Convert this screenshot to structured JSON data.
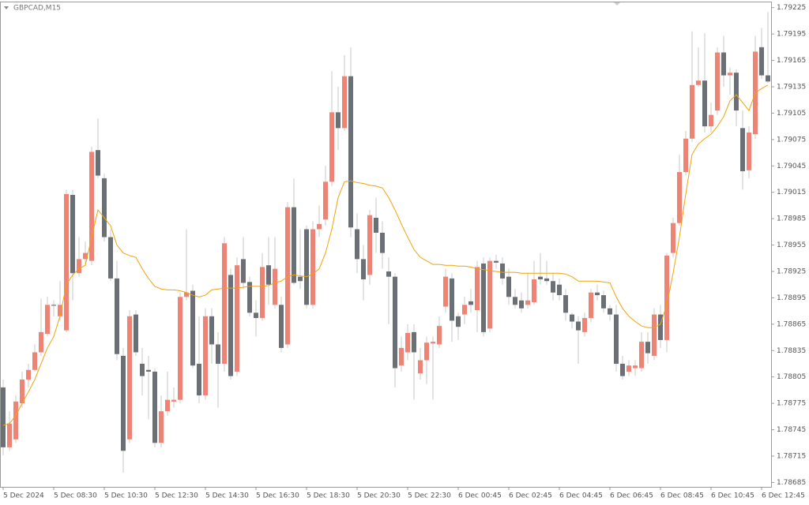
{
  "chart_data": {
    "type": "candlestick",
    "title": "GBPCAD,M15",
    "categories": [
      "5 Dec 2024",
      null,
      null,
      null,
      null,
      null,
      null,
      null,
      "5 Dec 08:30",
      null,
      null,
      null,
      null,
      null,
      null,
      null,
      "5 Dec 10:30",
      null,
      null,
      null,
      null,
      null,
      null,
      null,
      "5 Dec 12:30",
      null,
      null,
      null,
      null,
      null,
      null,
      null,
      "5 Dec 14:30",
      null,
      null,
      null,
      null,
      null,
      null,
      null,
      "5 Dec 16:30",
      null,
      null,
      null,
      null,
      null,
      null,
      null,
      "5 Dec 18:30",
      null,
      null,
      null,
      null,
      null,
      null,
      null,
      "5 Dec 20:30",
      null,
      null,
      null,
      null,
      null,
      null,
      null,
      "5 Dec 22:30",
      null,
      null,
      null,
      null,
      null,
      null,
      null,
      "6 Dec 00:45",
      null,
      null,
      null,
      null,
      null,
      null,
      null,
      "6 Dec 02:45",
      null,
      null,
      null,
      null,
      null,
      null,
      null,
      "6 Dec 04:45",
      null,
      null,
      null,
      null,
      null,
      null,
      null,
      "6 Dec 06:45",
      null,
      null,
      null,
      null,
      null,
      null,
      null,
      "6 Dec 08:45",
      null,
      null,
      null,
      null,
      null,
      null,
      null,
      "6 Dec 10:45",
      null,
      null,
      null,
      null,
      null,
      null,
      null,
      "6 Dec 12:45",
      null
    ],
    "open": [
      1.78793,
      1.78725,
      1.78734,
      1.78775,
      1.78802,
      1.78813,
      1.78833,
      1.78854,
      1.78887,
      1.78874,
      1.78858,
      1.79012,
      1.78923,
      1.78939,
      1.78937,
      1.79063,
      1.79031,
      1.78964,
      1.78917,
      1.78829,
      1.78734,
      1.78876,
      1.7882,
      1.78813,
      1.78811,
      1.7873,
      1.78766,
      1.78777,
      1.78779,
      1.78896,
      1.78903,
      1.7882,
      1.78784,
      1.78874,
      1.78842,
      1.7882,
      1.78921,
      1.78811,
      1.78939,
      1.78913,
      1.78878,
      1.78872,
      1.78932,
      1.78887,
      1.78887,
      1.78842,
      1.78998,
      1.78919,
      1.78973,
      1.78887,
      1.78973,
      1.78984,
      1.79027,
      1.79106,
      1.79088,
      1.79147,
      1.78973,
      1.78939,
      1.78921,
      1.78986,
      1.78969,
      1.78925,
      1.78919,
      1.78818,
      1.78833,
      1.78856,
      1.78809,
      1.78824,
      1.78843,
      1.78842,
      1.78885,
      1.78917,
      1.78874,
      1.78876,
      1.78891,
      1.78881,
      1.78934,
      1.7886,
      1.78937,
      1.78934,
      1.78919,
      1.78896,
      1.78892,
      1.78887,
      1.7889,
      1.78919,
      1.78917,
      1.78914,
      1.7891,
      1.78898,
      1.78876,
      1.78868,
      1.78856,
      1.78872,
      1.78901,
      1.78898,
      1.78883,
      1.78876,
      1.7882,
      1.78811,
      1.78815,
      1.78815,
      1.78845,
      1.78829,
      1.78876,
      1.78847,
      1.78946,
      1.7898,
      1.79038,
      1.79076,
      1.79137,
      1.79142,
      1.7909,
      1.79108,
      1.79174,
      1.79148,
      1.79151,
      1.79088,
      1.7904,
      1.79081,
      1.7918,
      1.79148
    ],
    "high": [
      1.78802,
      1.78766,
      1.78784,
      1.78811,
      1.7882,
      1.78842,
      1.78894,
      1.78896,
      1.78892,
      1.78914,
      1.79018,
      1.79018,
      1.78964,
      1.78959,
      1.79067,
      1.79099,
      1.79036,
      1.78973,
      1.78937,
      1.78838,
      1.78881,
      1.78881,
      1.78838,
      1.78829,
      1.78815,
      1.78784,
      1.78811,
      1.78793,
      1.78901,
      1.78973,
      1.7891,
      1.78874,
      1.78883,
      1.78883,
      1.78856,
      1.78964,
      1.78928,
      1.78941,
      1.78964,
      1.78919,
      1.78892,
      1.78946,
      1.78964,
      1.78964,
      1.78896,
      1.79004,
      1.79031,
      1.78973,
      1.78977,
      1.78982,
      1.79,
      1.79045,
      1.79153,
      1.79135,
      1.79171,
      1.7918,
      1.78991,
      1.78955,
      1.78995,
      1.79009,
      1.78982,
      1.78941,
      1.78923,
      1.78851,
      1.78865,
      1.78865,
      1.78838,
      1.78851,
      1.78851,
      1.78874,
      1.78928,
      1.78923,
      1.78878,
      1.78896,
      1.78905,
      1.78937,
      1.78941,
      1.78941,
      1.78944,
      1.78941,
      1.78928,
      1.78905,
      1.78901,
      1.78923,
      1.78937,
      1.78946,
      1.78937,
      1.78923,
      1.78917,
      1.78905,
      1.78878,
      1.78874,
      1.78878,
      1.78905,
      1.7891,
      1.78903,
      1.78887,
      1.78887,
      1.78829,
      1.78824,
      1.78824,
      1.78856,
      1.78856,
      1.78883,
      1.78887,
      1.78946,
      1.78986,
      1.79058,
      1.79085,
      1.79198,
      1.7918,
      1.79196,
      1.79117,
      1.7918,
      1.79193,
      1.79157,
      1.79155,
      1.79108,
      1.7909,
      1.79193,
      1.79202,
      1.7922
    ],
    "low": [
      1.78716,
      1.78721,
      1.7873,
      1.7877,
      1.78793,
      1.78811,
      1.78829,
      1.78851,
      1.78874,
      1.78869,
      1.78856,
      1.78892,
      1.78919,
      1.78932,
      1.78932,
      1.79031,
      1.78959,
      1.78914,
      1.78824,
      1.78696,
      1.7873,
      1.78829,
      1.78784,
      1.78757,
      1.78725,
      1.78725,
      1.78761,
      1.7877,
      1.78775,
      1.78892,
      1.78815,
      1.78775,
      1.78779,
      1.7882,
      1.7877,
      1.78811,
      1.78802,
      1.78806,
      1.78905,
      1.78874,
      1.78851,
      1.78869,
      1.78887,
      1.78883,
      1.78833,
      1.78838,
      1.7891,
      1.78905,
      1.78883,
      1.78883,
      1.78964,
      1.78977,
      1.79022,
      1.79063,
      1.79085,
      1.78964,
      1.78923,
      1.78892,
      1.7891,
      1.78946,
      1.78928,
      1.78865,
      1.78793,
      1.78811,
      1.78824,
      1.78779,
      1.78802,
      1.78797,
      1.78779,
      1.78838,
      1.78878,
      1.78845,
      1.78847,
      1.78865,
      1.78878,
      1.78856,
      1.78851,
      1.78856,
      1.78928,
      1.7891,
      1.78887,
      1.78883,
      1.78878,
      1.78883,
      1.78887,
      1.7891,
      1.7891,
      1.78892,
      1.78892,
      1.78869,
      1.7886,
      1.7882,
      1.78851,
      1.78867,
      1.78892,
      1.78878,
      1.78869,
      1.78811,
      1.78802,
      1.78806,
      1.78806,
      1.78811,
      1.7882,
      1.78824,
      1.78838,
      1.78833,
      1.78941,
      1.78977,
      1.79034,
      1.79072,
      1.79135,
      1.79083,
      1.79083,
      1.79103,
      1.79135,
      1.79126,
      1.7909,
      1.79018,
      1.79031,
      1.79076,
      1.79144,
      1.79139
    ],
    "close": [
      1.78725,
      1.78752,
      1.78777,
      1.78802,
      1.78813,
      1.78833,
      1.78856,
      1.78887,
      1.78886,
      1.78887,
      1.79013,
      1.78923,
      1.78939,
      1.78946,
      1.79061,
      1.79034,
      1.78964,
      1.78917,
      1.78831,
      1.78721,
      1.78874,
      1.78833,
      1.78806,
      1.78811,
      1.7873,
      1.78766,
      1.78779,
      1.78779,
      1.78896,
      1.78901,
      1.78818,
      1.78784,
      1.78874,
      1.78842,
      1.7882,
      1.78957,
      1.78806,
      1.78932,
      1.78912,
      1.78878,
      1.78872,
      1.7893,
      1.7891,
      1.78928,
      1.78838,
      1.78998,
      1.78912,
      1.78914,
      1.78887,
      1.78973,
      1.78979,
      1.79027,
      1.79106,
      1.79088,
      1.79147,
      1.78975,
      1.78939,
      1.78916,
      1.78989,
      1.78969,
      1.78946,
      1.78919,
      1.78815,
      1.78838,
      1.78855,
      1.78833,
      1.78824,
      1.78844,
      1.78845,
      1.78863,
      1.78919,
      1.78869,
      1.78862,
      1.78887,
      1.78887,
      1.7893,
      1.78856,
      1.78937,
      1.78935,
      1.78917,
      1.78896,
      1.78887,
      1.78883,
      1.78892,
      1.78916,
      1.78916,
      1.78914,
      1.78901,
      1.78898,
      1.78878,
      1.78868,
      1.78858,
      1.78872,
      1.78901,
      1.78898,
      1.78883,
      1.78876,
      1.7882,
      1.78806,
      1.78818,
      1.78818,
      1.78845,
      1.78832,
      1.78876,
      1.78847,
      1.78943,
      1.7898,
      1.79038,
      1.79076,
      1.79137,
      1.79142,
      1.7909,
      1.79103,
      1.79174,
      1.79148,
      1.79151,
      1.79108,
      1.79039,
      1.79083,
      1.79175,
      1.79148,
      1.79141
    ],
    "ma_values": [
      1.7875,
      1.78752,
      1.78761,
      1.78775,
      1.78788,
      1.78802,
      1.7882,
      1.78838,
      1.78851,
      1.78874,
      1.7891,
      1.78921,
      1.78928,
      1.78932,
      1.78964,
      1.78995,
      1.78986,
      1.78977,
      1.78955,
      1.78946,
      1.78943,
      1.78941,
      1.78928,
      1.78917,
      1.78908,
      1.78905,
      1.78904,
      1.78904,
      1.78903,
      1.78901,
      1.78898,
      1.78896,
      1.78898,
      1.78904,
      1.78905,
      1.78906,
      1.78906,
      1.78906,
      1.78907,
      1.78908,
      1.78908,
      1.78908,
      1.78909,
      1.78912,
      1.78914,
      1.78919,
      1.78921,
      1.7892,
      1.78919,
      1.78922,
      1.78928,
      1.78946,
      1.78973,
      1.79009,
      1.79027,
      1.79028,
      1.79026,
      1.79025,
      1.79023,
      1.79022,
      1.7902,
      1.79009,
      1.78995,
      1.78979,
      1.78964,
      1.7895,
      1.78941,
      1.78937,
      1.78933,
      1.78933,
      1.78932,
      1.78932,
      1.78931,
      1.78931,
      1.7893,
      1.78928,
      1.78927,
      1.78926,
      1.78925,
      1.78924,
      1.78924,
      1.78924,
      1.78923,
      1.78923,
      1.78923,
      1.78923,
      1.78923,
      1.78923,
      1.78923,
      1.78922,
      1.78919,
      1.78914,
      1.78914,
      1.78914,
      1.78914,
      1.78913,
      1.78912,
      1.78896,
      1.78883,
      1.78874,
      1.78868,
      1.78863,
      1.78861,
      1.78861,
      1.78865,
      1.78887,
      1.78923,
      1.78964,
      1.79013,
      1.79058,
      1.7907,
      1.79076,
      1.79081,
      1.7909,
      1.79101,
      1.79119,
      1.79126,
      1.79117,
      1.79108,
      1.79128,
      1.79133,
      1.79137
    ],
    "up_color": "#ef8376",
    "down_color": "#6b6f76",
    "ma_color": "#f0a30a",
    "ylim": [
      1.7868,
      1.79231
    ],
    "yticks": [
      1.79225,
      1.79195,
      1.79165,
      1.79135,
      1.79105,
      1.79075,
      1.79045,
      1.79015,
      1.78985,
      1.78955,
      1.78925,
      1.78895,
      1.78865,
      1.78835,
      1.78805,
      1.78775,
      1.78745,
      1.78715,
      1.78685
    ]
  }
}
